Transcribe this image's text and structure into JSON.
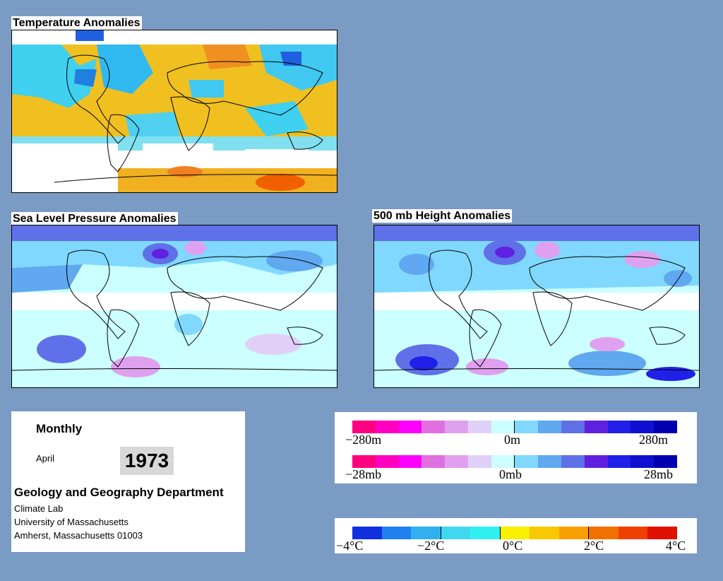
{
  "panels": {
    "temperature": {
      "title": "Temperature Anomalies"
    },
    "slp": {
      "title": "Sea Level Pressure Anomalies"
    },
    "height500": {
      "title": "500 mb Height Anomalies"
    }
  },
  "info": {
    "period": "Monthly",
    "month": "April",
    "year": "1973",
    "department": "Geology and Geography Department",
    "lab": "Climate Lab",
    "university": "University of Massachusetts",
    "address": "Amherst, Massachusetts 01003"
  },
  "legends": {
    "height": {
      "min": "−280m",
      "mid": "0m",
      "max": "280m"
    },
    "pressure": {
      "min": "−28mb",
      "mid": "0mb",
      "max": "28mb"
    },
    "temperature": {
      "labels": [
        "−4°C",
        "−2°C",
        "0°C",
        "2°C",
        "4°C"
      ]
    }
  },
  "colors": {
    "background": "#7a9bc4",
    "anomaly_scale": [
      "#ff0080",
      "#ff00c0",
      "#ff00ff",
      "#e070e0",
      "#e0a0f0",
      "#e0d0f8",
      "#ccffff",
      "#80d8ff",
      "#60a8f0",
      "#6070e8",
      "#6020e0",
      "#2020e8",
      "#1010d0",
      "#0000b0"
    ],
    "temperature_scale": [
      "#1030e0",
      "#2080f0",
      "#30b0f0",
      "#40d8f0",
      "#30f0f0",
      "#f8f000",
      "#f8c800",
      "#f8a000",
      "#f07000",
      "#f04000",
      "#e01000"
    ]
  }
}
